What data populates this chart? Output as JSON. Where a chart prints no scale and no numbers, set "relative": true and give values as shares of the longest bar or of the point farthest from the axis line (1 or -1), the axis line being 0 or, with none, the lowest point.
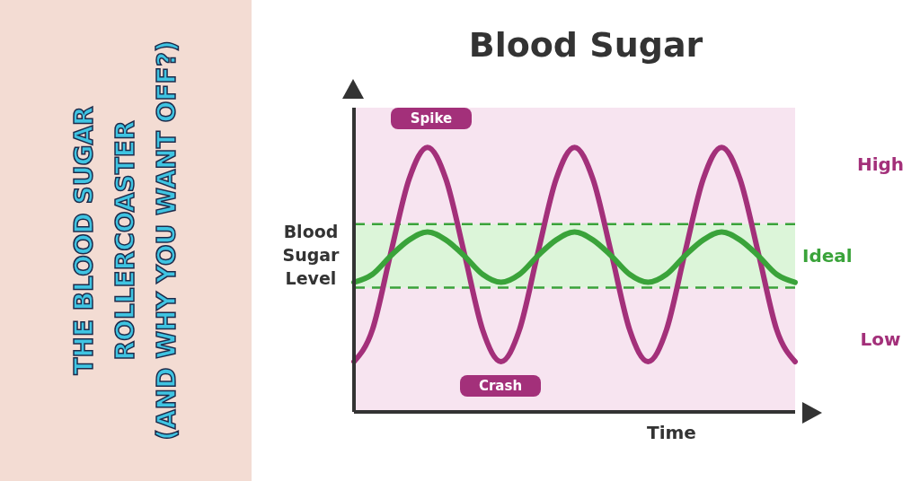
{
  "chart_data": {
    "type": "line",
    "title": "Blood Sugar",
    "xlabel": "Time",
    "ylabel": "Blood Sugar Level",
    "relative": true,
    "categories": [
      null,
      null,
      null,
      null,
      null,
      null,
      null,
      null,
      null,
      null,
      null,
      null,
      null,
      null,
      null,
      null,
      null,
      null,
      null,
      null,
      null,
      null,
      null,
      null,
      null
    ],
    "series": [
      {
        "color": "#a3307a",
        "values": [
          0.19,
          0.31,
          0.6,
          0.88,
          1.0,
          0.88,
          0.6,
          0.31,
          0.19,
          0.31,
          0.6,
          0.88,
          1.0,
          0.88,
          0.6,
          0.31,
          0.19,
          0.31,
          0.6,
          0.88,
          1.0,
          0.88,
          0.6,
          0.31,
          0.19
        ]
      },
      {
        "color": "#3aa33a",
        "values": [
          0.49,
          0.52,
          0.59,
          0.65,
          0.68,
          0.65,
          0.59,
          0.52,
          0.49,
          0.52,
          0.59,
          0.65,
          0.68,
          0.65,
          0.59,
          0.52,
          0.49,
          0.52,
          0.59,
          0.65,
          0.68,
          0.65,
          0.59,
          0.52,
          0.49
        ]
      }
    ],
    "bands": [
      {
        "axis": "y",
        "from": 0.47,
        "to": 0.71,
        "label": "Ideal",
        "color": "#dcf5d9"
      }
    ],
    "ref_lines": [
      {
        "axis": "y",
        "value": 0.47,
        "color": "#3aa33a",
        "line_style": "dashed"
      },
      {
        "axis": "y",
        "value": 0.71,
        "color": "#3aa33a",
        "line_style": "dashed"
      }
    ],
    "annotations": [
      "THE BLOOD SUGAR",
      "ROLLERCOASTER",
      "(AND WHY YOU WANT OFF?)",
      {
        "text": "Spike",
        "y": 1.0
      },
      {
        "text": "Crash",
        "y": 0.19
      },
      "High",
      "Low"
    ]
  }
}
